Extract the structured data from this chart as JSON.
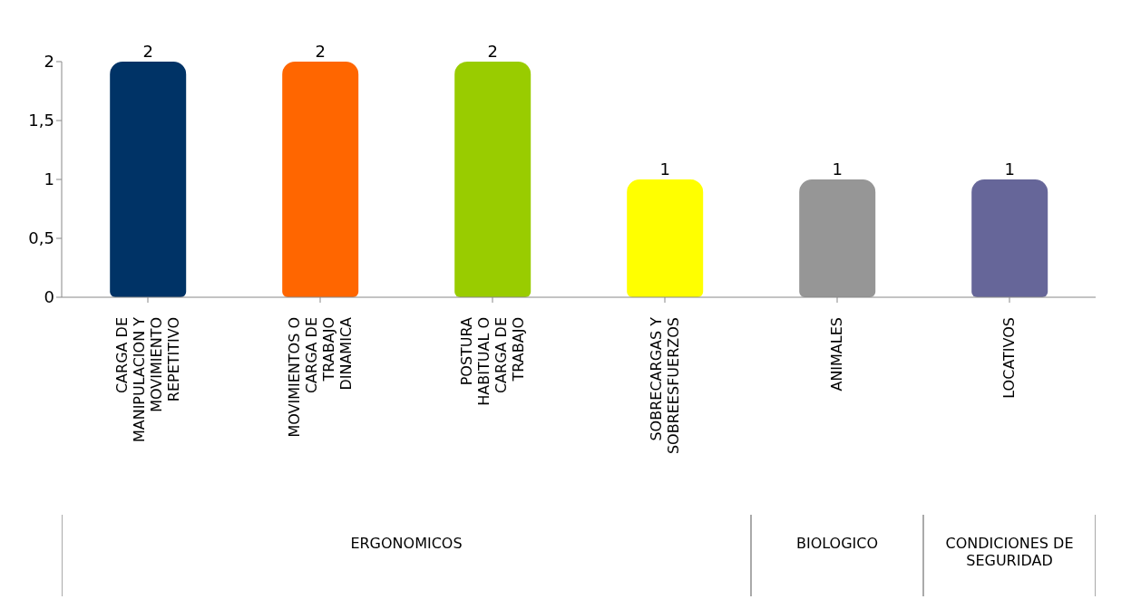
{
  "chart_data": {
    "type": "bar",
    "categories": [
      "CARGA DE MANIPULACION Y MOVIMIENTO REPETITIVO",
      "MOVIMIENTOS O CARGA DE TRABAJO DINAMICA",
      "POSTURA HABITUAL O CARGA DE TRABAJO",
      "SOBRECARGAS Y SOBREESFUERZOS",
      "ANIMALES",
      "LOCATIVOS"
    ],
    "values": [
      2,
      2,
      2,
      1,
      1,
      1
    ],
    "colors": [
      "#003366",
      "#ff6600",
      "#99cc00",
      "#ffff00",
      "#969696",
      "#666699"
    ],
    "ylim": [
      0,
      2
    ],
    "yticks": [
      0,
      {
        "value": 0.5,
        "label": "0,5"
      },
      1,
      {
        "value": 1.5,
        "label": "1,5"
      },
      2
    ],
    "data_labels": true,
    "grid": false,
    "annotations": [
      "ERGONOMICOS",
      "BIOLOGICO",
      "CONDICIONES DE SEGURIDAD"
    ]
  }
}
